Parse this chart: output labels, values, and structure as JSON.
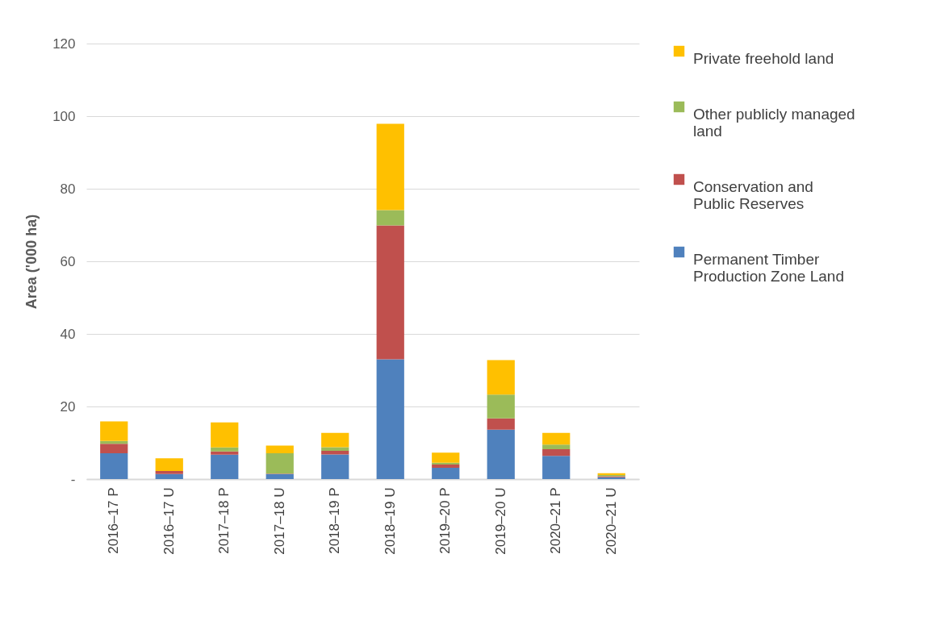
{
  "chart_data": {
    "type": "bar",
    "stacked": true,
    "ylabel": "Area ('000 ha)",
    "categories": [
      "2016–17 P",
      "2016–17 U",
      "2017–18 P",
      "2017–18 U",
      "2018–19 P",
      "2018–19 U",
      "2019–20 P",
      "2019–20 U",
      "2020–21 P",
      "2020–21 U"
    ],
    "series": [
      {
        "name": "Permanent Timber Production Zone Land",
        "color": "#4f81bd",
        "values": [
          7.1,
          1.4,
          6.7,
          1.4,
          6.8,
          33.0,
          3.1,
          13.6,
          6.4,
          0.5
        ]
      },
      {
        "name": "Conservation and Public Reserves",
        "color": "#c0504d",
        "values": [
          2.6,
          0.8,
          0.9,
          0.1,
          1.0,
          36.9,
          0.9,
          3.1,
          1.8,
          0.3
        ]
      },
      {
        "name": "Other publicly managed land",
        "color": "#9bbb59",
        "values": [
          0.8,
          null,
          1.1,
          5.6,
          1.0,
          4.2,
          0.5,
          6.6,
          1.3,
          0.3
        ]
      },
      {
        "name": "Private freehold land",
        "color": "#ffc000",
        "values": [
          5.4,
          3.5,
          6.9,
          2.1,
          3.9,
          23.8,
          2.8,
          9.5,
          3.2,
          0.5
        ]
      }
    ],
    "ylim": [
      0,
      120
    ],
    "yticks": [
      {
        "value": 0,
        "label": "-"
      },
      20,
      40,
      60,
      80,
      100,
      120
    ],
    "grid": "y",
    "legend": "right"
  }
}
